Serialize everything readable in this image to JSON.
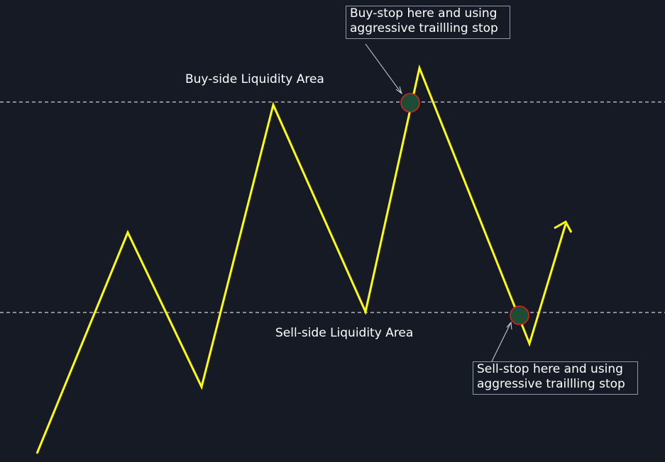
{
  "diagram": {
    "buy_side_label": "Buy-side Liquidity Area",
    "sell_side_label": "Sell-side Liquidity Area",
    "buy_stop_callout": "Buy-stop here and using\naggressive traillling stop",
    "sell_stop_callout": "Sell-stop here and using\naggressive traillling stop"
  },
  "colors": {
    "background": "#161a25",
    "price_path": "#ffff00",
    "dashed_line": "#ffffff",
    "marker_stroke": "#e0201e",
    "marker_fill": "#1e4d36",
    "callout_border": "#8a9aa8"
  }
}
